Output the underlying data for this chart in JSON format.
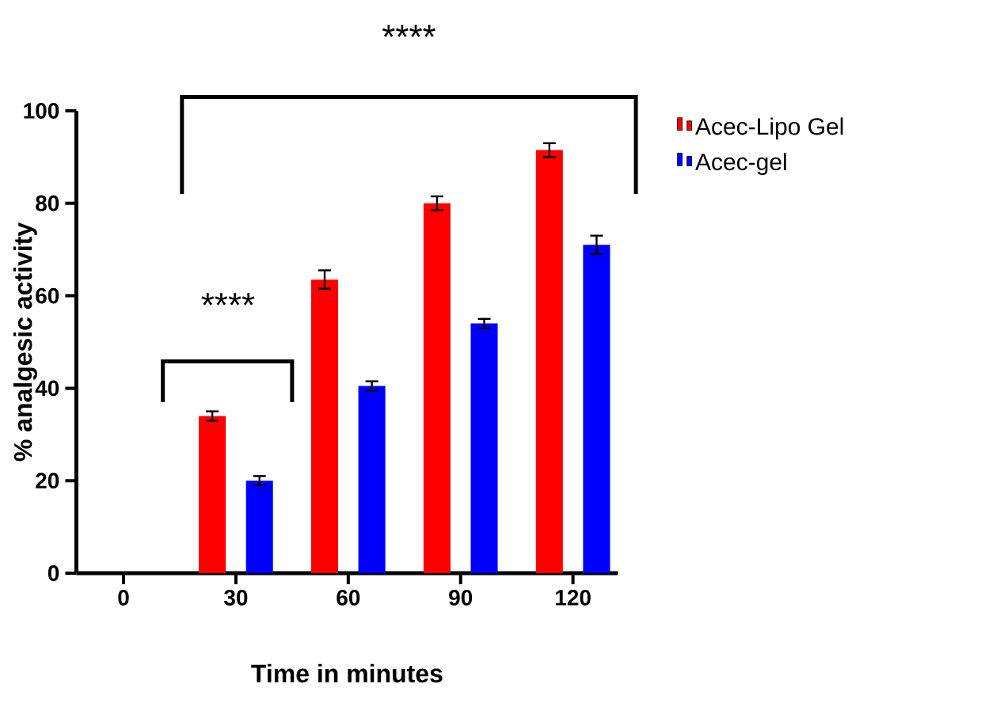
{
  "chart_data": {
    "type": "bar",
    "categories": [
      "0",
      "30",
      "60",
      "90",
      "120"
    ],
    "series": [
      {
        "name": "Acec-Lipo Gel",
        "color": "#ff0000",
        "values": [
          0,
          34,
          63.5,
          80,
          91.5
        ],
        "errors": [
          null,
          1,
          2,
          1.5,
          1.5
        ]
      },
      {
        "name": "Acec-gel",
        "color": "#0000ff",
        "values": [
          0,
          20,
          40.5,
          54,
          71
        ],
        "errors": [
          null,
          1,
          1,
          1,
          2
        ]
      }
    ],
    "xlabel": "Time in minutes",
    "ylabel": "% analgesic activity",
    "ylim": [
      0,
      100
    ],
    "yticks": [
      0,
      20,
      40,
      60,
      80,
      100
    ],
    "annotations": [
      "****",
      "****"
    ],
    "grid": false,
    "legend": "top right"
  }
}
